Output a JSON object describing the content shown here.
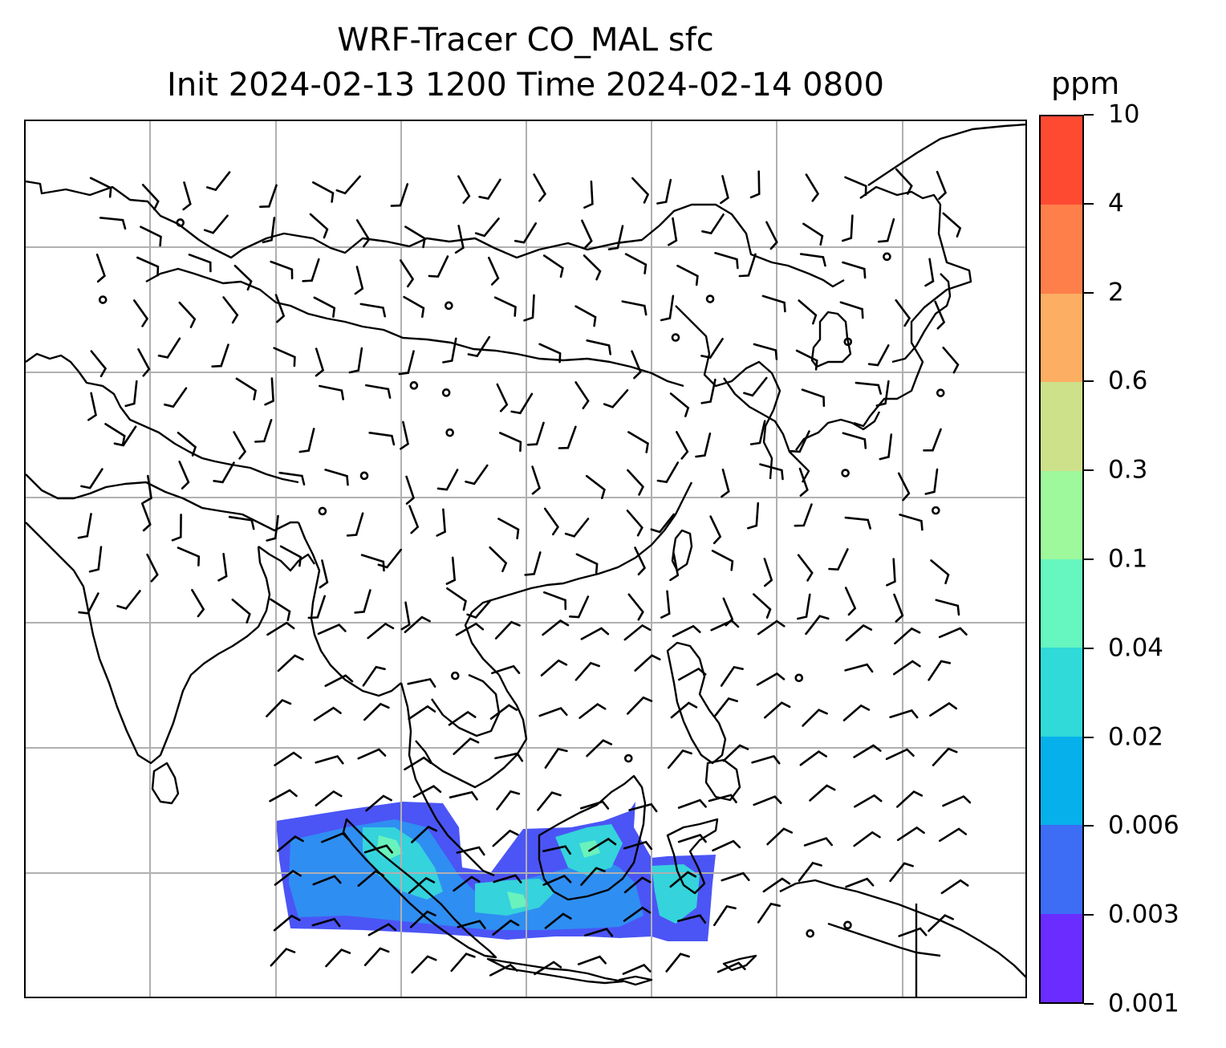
{
  "title": {
    "line1": "WRF-Tracer CO_MAL sfc",
    "line2": "Init 2024-02-13 1200 Time 2024-02-14 0800"
  },
  "colorbar": {
    "unit": "ppm",
    "ticks": [
      "0.001",
      "0.003",
      "0.006",
      "0.02",
      "0.04",
      "0.1",
      "0.3",
      "0.6",
      "2",
      "4",
      "10"
    ],
    "colors": [
      "#6a2cff",
      "#3d6cf5",
      "#06b0ea",
      "#2fdad8",
      "#66f6c0",
      "#9ef89c",
      "#cde08a",
      "#fcae63",
      "#ff7f4a",
      "#ff4a32",
      "#ff2a16"
    ]
  },
  "map": {
    "gridline_color": "#b0b0b0",
    "coast_color": "#000000",
    "field_colors": {
      "low": "#4b55f5",
      "mid": "#2f8ef2",
      "high": "#35d3dc",
      "peak": "#6af2bd"
    }
  }
}
